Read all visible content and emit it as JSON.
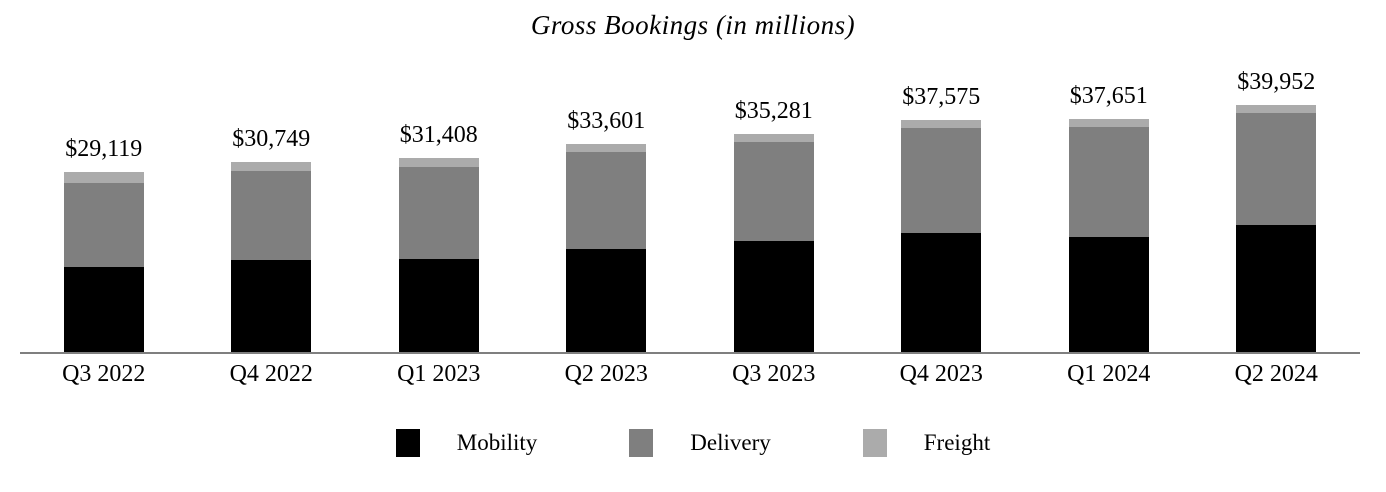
{
  "title": "Gross Bookings (in millions)",
  "chart_data": {
    "type": "bar",
    "stacked": true,
    "title": "Gross Bookings (in millions)",
    "categories": [
      "Q3 2022",
      "Q4 2022",
      "Q1 2023",
      "Q2 2023",
      "Q3 2023",
      "Q4 2023",
      "Q1 2024",
      "Q2 2024"
    ],
    "series": [
      {
        "name": "Mobility",
        "color": "#000000",
        "values": [
          13684,
          14894,
          14981,
          16728,
          17903,
          19285,
          18670,
          20554
        ]
      },
      {
        "name": "Delivery",
        "color": "#7f7f7f",
        "values": [
          13684,
          14315,
          15026,
          15595,
          16094,
          17011,
          17699,
          18126
        ]
      },
      {
        "name": "Freight",
        "color": "#ababab",
        "values": [
          1751,
          1540,
          1401,
          1278,
          1284,
          1279,
          1282,
          1272
        ]
      }
    ],
    "totals": [
      29119,
      30749,
      31408,
      33601,
      35281,
      37575,
      37651,
      39952
    ],
    "totals_labels": [
      "$29,119",
      "$30,749",
      "$31,408",
      "$33,601",
      "$35,281",
      "$37,575",
      "$37,651",
      "$39,952"
    ],
    "ylim": [
      0,
      40000
    ],
    "grid": false,
    "legend_position": "bottom",
    "axis_line_color": "#7f7f7f"
  }
}
